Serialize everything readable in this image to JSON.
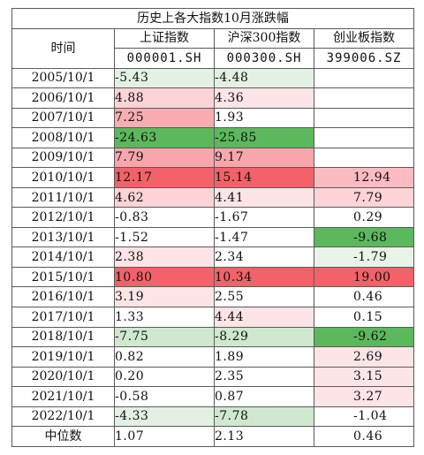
{
  "title": "历史上各大指数10月涨跌幅",
  "header": {
    "date_col": "时间",
    "indices": [
      {
        "name": "上证指数",
        "code": "000001.SH"
      },
      {
        "name": "沪深300指数",
        "code": "000300.SH"
      },
      {
        "name": "创业板指数",
        "code": "399006.SZ"
      }
    ]
  },
  "rows": [
    {
      "date": "2005/10/1",
      "v": [
        "-5.43",
        "-4.48",
        ""
      ],
      "bg": [
        "#e3f1e3",
        "#e3f1e3",
        "#ffffff"
      ]
    },
    {
      "date": "2006/10/1",
      "v": [
        "4.88",
        "4.36",
        ""
      ],
      "bg": [
        "#fcd3d6",
        "#fde4e6",
        "#ffffff"
      ]
    },
    {
      "date": "2007/10/1",
      "v": [
        "7.25",
        "1.93",
        ""
      ],
      "bg": [
        "#f9adb2",
        "#ffffff",
        "#ffffff"
      ]
    },
    {
      "date": "2008/10/1",
      "v": [
        "-24.63",
        "-25.85",
        ""
      ],
      "bg": [
        "#5cb85c",
        "#5cb85c",
        "#ffffff"
      ]
    },
    {
      "date": "2009/10/1",
      "v": [
        "7.79",
        "9.17",
        ""
      ],
      "bg": [
        "#f8a6ac",
        "#f8a6ac",
        "#ffffff"
      ]
    },
    {
      "date": "2010/10/1",
      "v": [
        "12.17",
        "15.14",
        "12.94"
      ],
      "bg": [
        "#f26268",
        "#f26268",
        "#fabcc0"
      ]
    },
    {
      "date": "2011/10/1",
      "v": [
        "4.62",
        "4.41",
        "7.79"
      ],
      "bg": [
        "#fcd3d6",
        "#fde4e6",
        "#fcd3d6"
      ]
    },
    {
      "date": "2012/10/1",
      "v": [
        "-0.83",
        "-1.67",
        "0.29"
      ],
      "bg": [
        "#ffffff",
        "#ffffff",
        "#ffffff"
      ]
    },
    {
      "date": "2013/10/1",
      "v": [
        "-1.52",
        "-1.47",
        "-9.68"
      ],
      "bg": [
        "#ffffff",
        "#ffffff",
        "#5cb85c"
      ]
    },
    {
      "date": "2014/10/1",
      "v": [
        "2.38",
        "2.34",
        "-1.79"
      ],
      "bg": [
        "#fde4e6",
        "#ffffff",
        "#e8f4e8"
      ]
    },
    {
      "date": "2015/10/1",
      "v": [
        "10.80",
        "10.34",
        "19.00"
      ],
      "bg": [
        "#f26268",
        "#f26268",
        "#f26268"
      ]
    },
    {
      "date": "2016/10/1",
      "v": [
        "3.19",
        "2.55",
        "0.46"
      ],
      "bg": [
        "#fde4e6",
        "#ffffff",
        "#ffffff"
      ]
    },
    {
      "date": "2017/10/1",
      "v": [
        "1.33",
        "4.44",
        "0.15"
      ],
      "bg": [
        "#ffffff",
        "#fde4e6",
        "#ffffff"
      ]
    },
    {
      "date": "2018/10/1",
      "v": [
        "-7.75",
        "-8.29",
        "-9.62"
      ],
      "bg": [
        "#cfe8cf",
        "#cfe8cf",
        "#5cb85c"
      ]
    },
    {
      "date": "2019/10/1",
      "v": [
        "0.82",
        "1.89",
        "2.69"
      ],
      "bg": [
        "#ffffff",
        "#ffffff",
        "#fde4e6"
      ]
    },
    {
      "date": "2020/10/1",
      "v": [
        "0.20",
        "2.35",
        "3.15"
      ],
      "bg": [
        "#ffffff",
        "#ffffff",
        "#fde4e6"
      ]
    },
    {
      "date": "2021/10/1",
      "v": [
        "-0.58",
        "0.87",
        "3.27"
      ],
      "bg": [
        "#ffffff",
        "#ffffff",
        "#fde4e6"
      ]
    },
    {
      "date": "2022/10/1",
      "v": [
        "-4.33",
        "-7.78",
        "-1.04"
      ],
      "bg": [
        "#e3f1e3",
        "#cfe8cf",
        "#ffffff"
      ]
    }
  ],
  "median": {
    "label": "中位数",
    "v": [
      "1.07",
      "2.13",
      "0.46"
    ]
  }
}
